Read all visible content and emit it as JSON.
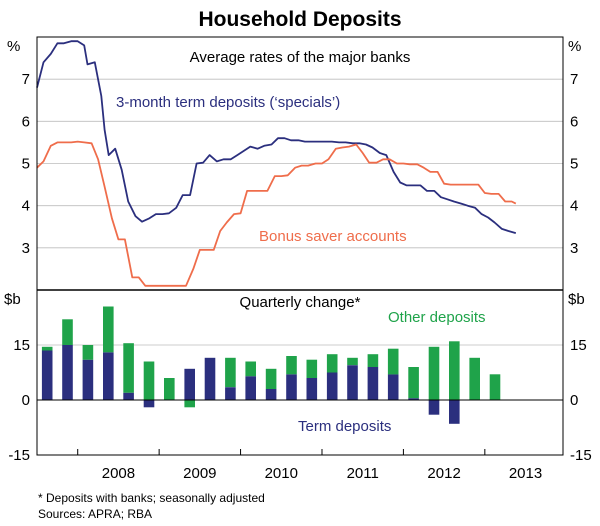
{
  "title": "Household Deposits",
  "footnote": "*    Deposits with banks; seasonally adjusted",
  "sources": "Sources: APRA; RBA",
  "chart_data": [
    {
      "type": "line",
      "panel": "top",
      "subtitle": "Average rates of the major banks",
      "unit_label": "%",
      "ylim": [
        2,
        8
      ],
      "yticks": [
        "3",
        "4",
        "5",
        "6",
        "7"
      ],
      "x_range": [
        2007.5,
        2013.96
      ],
      "x_tick_labels": [
        "2008",
        "2009",
        "2010",
        "2011",
        "2012",
        "2013"
      ],
      "grid": true,
      "series": [
        {
          "name": "3-month term deposits (‘specials’)",
          "color": "#2b2f7e",
          "points": [
            [
              2007.5,
              6.8
            ],
            [
              2007.58,
              7.4
            ],
            [
              2007.67,
              7.6
            ],
            [
              2007.75,
              7.85
            ],
            [
              2007.83,
              7.85
            ],
            [
              2007.92,
              7.9
            ],
            [
              2008.0,
              7.9
            ],
            [
              2008.08,
              7.8
            ],
            [
              2008.12,
              7.35
            ],
            [
              2008.21,
              7.4
            ],
            [
              2008.29,
              6.6
            ],
            [
              2008.33,
              5.8
            ],
            [
              2008.38,
              5.2
            ],
            [
              2008.46,
              5.35
            ],
            [
              2008.54,
              4.85
            ],
            [
              2008.62,
              4.1
            ],
            [
              2008.71,
              3.75
            ],
            [
              2008.79,
              3.62
            ],
            [
              2008.88,
              3.7
            ],
            [
              2008.96,
              3.8
            ],
            [
              2009.04,
              3.8
            ],
            [
              2009.12,
              3.82
            ],
            [
              2009.21,
              3.95
            ],
            [
              2009.29,
              4.25
            ],
            [
              2009.38,
              4.25
            ],
            [
              2009.46,
              5.0
            ],
            [
              2009.54,
              5.02
            ],
            [
              2009.62,
              5.2
            ],
            [
              2009.71,
              5.05
            ],
            [
              2009.79,
              5.1
            ],
            [
              2009.88,
              5.1
            ],
            [
              2009.96,
              5.2
            ],
            [
              2010.04,
              5.3
            ],
            [
              2010.12,
              5.4
            ],
            [
              2010.21,
              5.35
            ],
            [
              2010.29,
              5.42
            ],
            [
              2010.38,
              5.45
            ],
            [
              2010.46,
              5.6
            ],
            [
              2010.54,
              5.6
            ],
            [
              2010.62,
              5.55
            ],
            [
              2010.71,
              5.55
            ],
            [
              2010.79,
              5.52
            ],
            [
              2010.88,
              5.52
            ],
            [
              2010.96,
              5.52
            ],
            [
              2011.04,
              5.52
            ],
            [
              2011.12,
              5.52
            ],
            [
              2011.21,
              5.5
            ],
            [
              2011.29,
              5.5
            ],
            [
              2011.38,
              5.48
            ],
            [
              2011.46,
              5.48
            ],
            [
              2011.54,
              5.45
            ],
            [
              2011.62,
              5.38
            ],
            [
              2011.71,
              5.25
            ],
            [
              2011.79,
              5.2
            ],
            [
              2011.88,
              4.8
            ],
            [
              2011.96,
              4.55
            ],
            [
              2012.04,
              4.48
            ],
            [
              2012.12,
              4.48
            ],
            [
              2012.21,
              4.48
            ],
            [
              2012.29,
              4.35
            ],
            [
              2012.38,
              4.35
            ],
            [
              2012.46,
              4.2
            ],
            [
              2012.54,
              4.15
            ],
            [
              2012.62,
              4.1
            ],
            [
              2012.71,
              4.05
            ],
            [
              2012.79,
              4.0
            ],
            [
              2012.88,
              3.95
            ],
            [
              2012.96,
              3.8
            ],
            [
              2013.04,
              3.72
            ],
            [
              2013.12,
              3.6
            ],
            [
              2013.21,
              3.45
            ],
            [
              2013.29,
              3.4
            ],
            [
              2013.38,
              3.35
            ]
          ]
        },
        {
          "name": "Bonus saver accounts",
          "color": "#ef6d4b",
          "points": [
            [
              2007.5,
              4.9
            ],
            [
              2007.58,
              5.05
            ],
            [
              2007.67,
              5.42
            ],
            [
              2007.75,
              5.5
            ],
            [
              2007.83,
              5.5
            ],
            [
              2007.92,
              5.5
            ],
            [
              2008.0,
              5.52
            ],
            [
              2008.08,
              5.5
            ],
            [
              2008.17,
              5.48
            ],
            [
              2008.25,
              5.1
            ],
            [
              2008.33,
              4.45
            ],
            [
              2008.42,
              3.7
            ],
            [
              2008.5,
              3.2
            ],
            [
              2008.58,
              3.2
            ],
            [
              2008.67,
              2.3
            ],
            [
              2008.75,
              2.3
            ],
            [
              2008.83,
              2.1
            ],
            [
              2008.92,
              2.1
            ],
            [
              2009.0,
              2.1
            ],
            [
              2009.08,
              2.1
            ],
            [
              2009.17,
              2.1
            ],
            [
              2009.25,
              2.1
            ],
            [
              2009.33,
              2.1
            ],
            [
              2009.42,
              2.5
            ],
            [
              2009.5,
              2.95
            ],
            [
              2009.58,
              2.95
            ],
            [
              2009.67,
              2.95
            ],
            [
              2009.75,
              3.4
            ],
            [
              2009.83,
              3.6
            ],
            [
              2009.92,
              3.8
            ],
            [
              2010.0,
              3.82
            ],
            [
              2010.08,
              4.35
            ],
            [
              2010.17,
              4.35
            ],
            [
              2010.25,
              4.35
            ],
            [
              2010.33,
              4.35
            ],
            [
              2010.42,
              4.7
            ],
            [
              2010.5,
              4.7
            ],
            [
              2010.58,
              4.72
            ],
            [
              2010.67,
              4.9
            ],
            [
              2010.75,
              4.95
            ],
            [
              2010.83,
              4.95
            ],
            [
              2010.92,
              5.0
            ],
            [
              2011.0,
              5.0
            ],
            [
              2011.08,
              5.1
            ],
            [
              2011.17,
              5.35
            ],
            [
              2011.25,
              5.38
            ],
            [
              2011.33,
              5.4
            ],
            [
              2011.42,
              5.45
            ],
            [
              2011.5,
              5.25
            ],
            [
              2011.58,
              5.02
            ],
            [
              2011.67,
              5.02
            ],
            [
              2011.75,
              5.1
            ],
            [
              2011.83,
              5.1
            ],
            [
              2011.92,
              5.0
            ],
            [
              2012.0,
              5.0
            ],
            [
              2012.08,
              4.98
            ],
            [
              2012.17,
              4.98
            ],
            [
              2012.25,
              4.9
            ],
            [
              2012.33,
              4.8
            ],
            [
              2012.42,
              4.8
            ],
            [
              2012.5,
              4.52
            ],
            [
              2012.58,
              4.5
            ],
            [
              2012.67,
              4.5
            ],
            [
              2012.75,
              4.5
            ],
            [
              2012.83,
              4.5
            ],
            [
              2012.92,
              4.5
            ],
            [
              2013.0,
              4.3
            ],
            [
              2013.08,
              4.28
            ],
            [
              2013.17,
              4.28
            ],
            [
              2013.25,
              4.1
            ],
            [
              2013.33,
              4.1
            ],
            [
              2013.38,
              4.05
            ]
          ]
        }
      ]
    },
    {
      "type": "bar",
      "panel": "bottom",
      "subtitle": "Quarterly change*",
      "unit_label": "$b",
      "ylim": [
        -15,
        30
      ],
      "yticks": [
        "-15",
        "0",
        "15"
      ],
      "stacked": true,
      "grid": true,
      "quarters": [
        "2007 Q3",
        "2007 Q4",
        "2008 Q1",
        "2008 Q2",
        "2008 Q3",
        "2008 Q4",
        "2009 Q1",
        "2009 Q2",
        "2009 Q3",
        "2009 Q4",
        "2010 Q1",
        "2010 Q2",
        "2010 Q3",
        "2010 Q4",
        "2011 Q1",
        "2011 Q2",
        "2011 Q3",
        "2011 Q4",
        "2012 Q1",
        "2012 Q2",
        "2012 Q3",
        "2012 Q4",
        "2013 Q1",
        "2013 Q2"
      ],
      "series": [
        {
          "name": "Term deposits",
          "color": "#2b2f7e",
          "values": [
            13.5,
            15,
            11,
            13,
            2,
            -2,
            0,
            8.5,
            11.5,
            3.5,
            6.5,
            3,
            7,
            6,
            7.5,
            9.5,
            9,
            7,
            0.5,
            -4,
            -6.5,
            0,
            0,
            0
          ]
        },
        {
          "name": "Other deposits",
          "color": "#1fa34a",
          "values": [
            1,
            7,
            4,
            12.5,
            13.5,
            10.5,
            6,
            -2,
            0,
            8,
            4,
            5.5,
            5,
            5,
            5,
            2,
            3.5,
            7,
            8.5,
            14.5,
            16,
            11.5,
            7,
            0
          ]
        }
      ]
    }
  ]
}
